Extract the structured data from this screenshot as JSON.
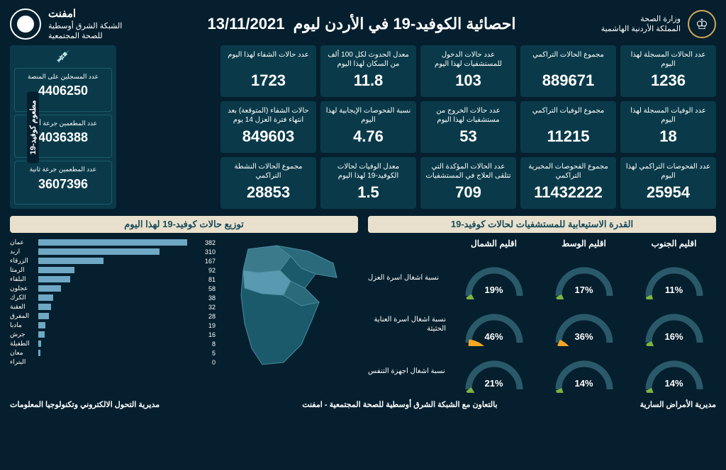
{
  "header": {
    "ministry1": "وزارة الصحة",
    "ministry2": "المملكة الأردنية الهاشمية",
    "title": "احصائية الكوفيد-19 في الأردن ليوم",
    "date": "13/11/2021",
    "emphnet1": "امفنت",
    "emphnet2": "الشبكة الشرق أوسطية",
    "emphnet3": "للصحة المجتمعية"
  },
  "cards": [
    [
      {
        "l": "عدد الحالات المسجلة لهذا اليوم",
        "v": "1236"
      },
      {
        "l": "مجموع الحالات التراكمي",
        "v": "889671"
      },
      {
        "l": "عدد حالات الدخول للمستشفيات لهذا اليوم",
        "v": "103"
      },
      {
        "l": "معدل الحدوث لكل 100 ألف من السكان لهذا اليوم",
        "v": "11.8"
      },
      {
        "l": "عدد حالات الشفاء لهذا اليوم",
        "v": "1723"
      }
    ],
    [
      {
        "l": "عدد الوفيات المسجلة لهذا اليوم",
        "v": "18"
      },
      {
        "l": "مجموع الوفيات التراكمي",
        "v": "11215"
      },
      {
        "l": "عدد حالات الخروج من مستشفيات لهذا اليوم",
        "v": "53"
      },
      {
        "l": "نسبة الفحوصات الإيجابية لهذا اليوم",
        "v": "4.76"
      },
      {
        "l": "حالات الشفاء (المتوقعة) بعد انتهاء فترة العزل 14 يوم",
        "v": "849603"
      }
    ],
    [
      {
        "l": "عدد الفحوصات التراكمي لهذا اليوم",
        "v": "25954"
      },
      {
        "l": "مجموع الفحوصات المخبرية التراكمي",
        "v": "11432222"
      },
      {
        "l": "عدد الحالات المؤكدة التي تتلقى العلاج في المستشفيات",
        "v": "709"
      },
      {
        "l": "معدل الوفيات لحالات الكوفيد-19 لهذا اليوم",
        "v": "1.5"
      },
      {
        "l": "مجموع الحالات النشطة التراكمي",
        "v": "28853"
      }
    ]
  ],
  "vax": {
    "side": "مطعوم كوفيد-19",
    "items": [
      {
        "l": "عدد المسجلين على المنصة",
        "v": "4406250"
      },
      {
        "l": "عدد المطعمين جرعة أولى",
        "v": "4036388"
      },
      {
        "l": "عدد المطعمين جرعة ثانية",
        "v": "3607396"
      }
    ]
  },
  "capacity": {
    "title": "القدرة الاستيعابية للمستشفيات لحالات كوفيد-19",
    "cols": [
      "اقليم الشمال",
      "اقليم الوسط",
      "اقليم الجنوب"
    ],
    "rows": [
      "نسبة اشغال اسرة العزل",
      "نسبة اشغال اسرة العناية الحثيثة",
      "نسبة اشغال اجهزة التنفس"
    ],
    "values": [
      [
        19,
        17,
        11
      ],
      [
        46,
        36,
        16
      ],
      [
        21,
        14,
        14
      ]
    ],
    "green": "#7cb342",
    "orange": "#f5a623",
    "track": "#2a5a6a"
  },
  "dist": {
    "title": "توزيع حالات كوفيد-19 لهذا اليوم",
    "max": 400,
    "bars": [
      {
        "l": "عمان",
        "v": 382
      },
      {
        "l": "اربد",
        "v": 310
      },
      {
        "l": "الزرقاء",
        "v": 167
      },
      {
        "l": "الرمثا",
        "v": 92
      },
      {
        "l": "البلقاء",
        "v": 81
      },
      {
        "l": "عجلون",
        "v": 58
      },
      {
        "l": "الكرك",
        "v": 38
      },
      {
        "l": "العقبة",
        "v": 32
      },
      {
        "l": "المفرق",
        "v": 28
      },
      {
        "l": "مادبا",
        "v": 19
      },
      {
        "l": "جرش",
        "v": 16
      },
      {
        "l": "الطفيلة",
        "v": 8
      },
      {
        "l": "معان",
        "v": 5
      },
      {
        "l": "البتراء",
        "v": 0
      }
    ],
    "bar_color": "#6fa8c4"
  },
  "footer": {
    "right": "مديرية الأمراض السارية",
    "mid": "بالتعاون مع الشبكة الشرق أوسطية للصحة المجتمعية - امفنت",
    "left": "مديرية التحول الالكتروني وتكنولوجيا المعلومات"
  }
}
